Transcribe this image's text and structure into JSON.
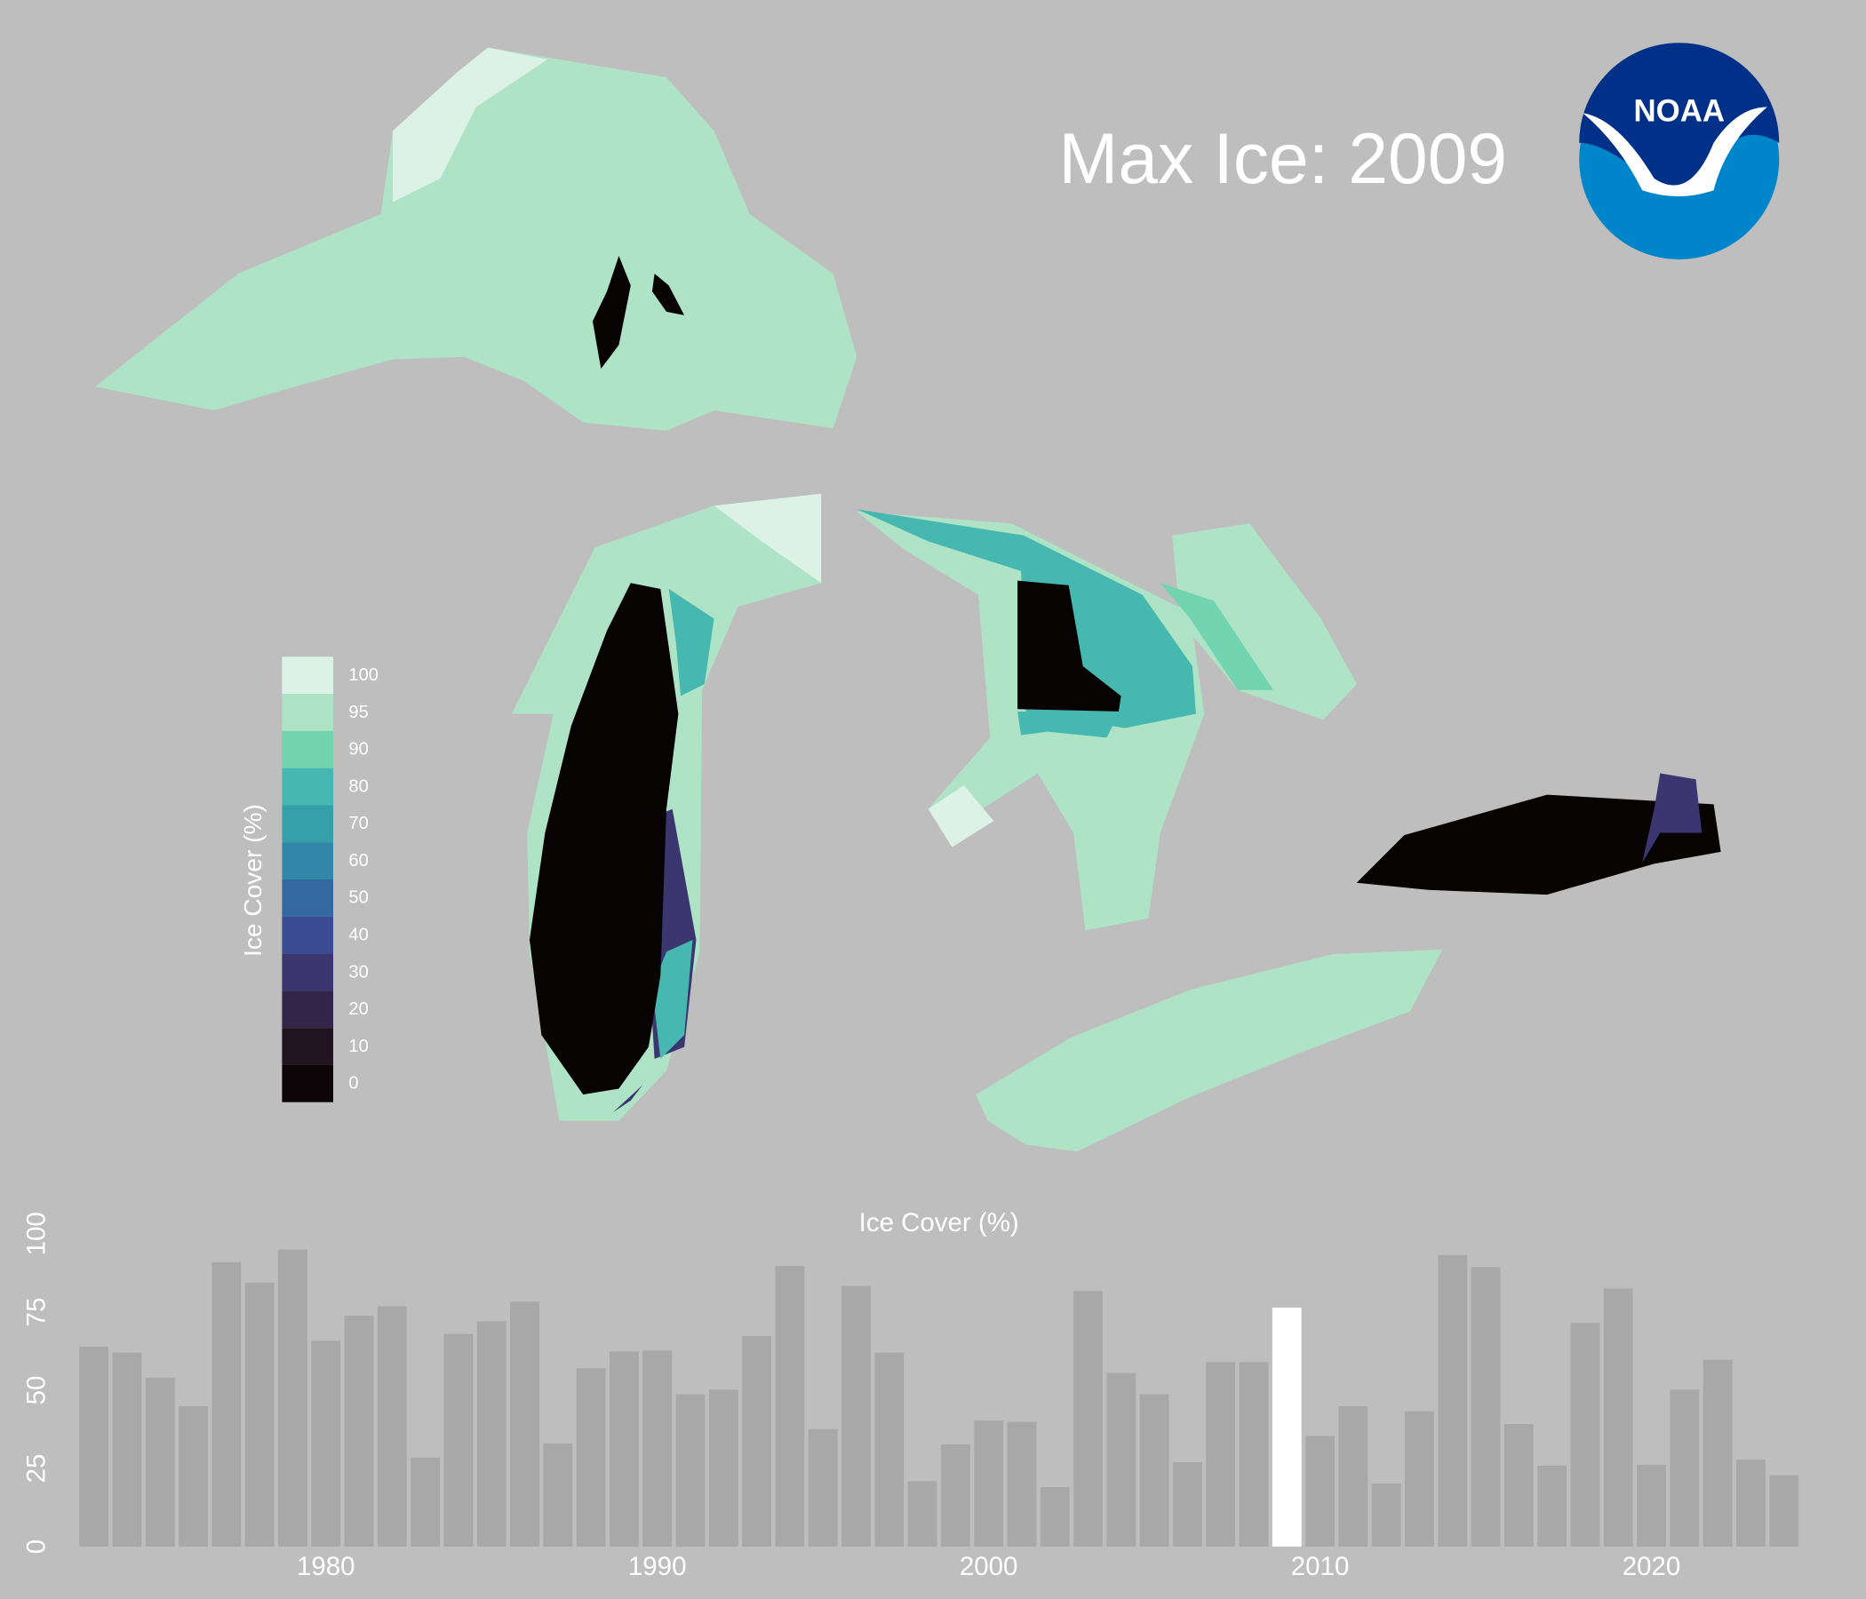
{
  "map": {
    "title": "Max Ice: 2009",
    "logo": "NOAA",
    "legend": {
      "title": "Ice Cover (%)",
      "items": [
        {
          "label": 100,
          "color": "#dcf2e6"
        },
        {
          "label": 95,
          "color": "#aee3c6"
        },
        {
          "label": 90,
          "color": "#72d4b0"
        },
        {
          "label": 80,
          "color": "#47b8b0"
        },
        {
          "label": 70,
          "color": "#35a0aa"
        },
        {
          "label": 60,
          "color": "#3286a8"
        },
        {
          "label": 50,
          "color": "#3469a0"
        },
        {
          "label": 40,
          "color": "#3a4b94"
        },
        {
          "label": 30,
          "color": "#3c3670"
        },
        {
          "label": 20,
          "color": "#322548"
        },
        {
          "label": 10,
          "color": "#22141f"
        },
        {
          "label": 0,
          "color": "#0c0507"
        }
      ]
    }
  },
  "chart_data": {
    "type": "bar",
    "title": "Ice Cover (%)",
    "color": "#a8a8a8",
    "highlight": {
      "x": 2009,
      "color": "#ffffff"
    },
    "x": [
      1973,
      1974,
      1975,
      1976,
      1977,
      1978,
      1979,
      1980,
      1981,
      1982,
      1983,
      1984,
      1985,
      1986,
      1987,
      1988,
      1989,
      1990,
      1991,
      1992,
      1993,
      1994,
      1995,
      1996,
      1997,
      1998,
      1999,
      2000,
      2001,
      2002,
      2003,
      2004,
      2005,
      2006,
      2007,
      2008,
      2009,
      2010,
      2011,
      2012,
      2013,
      2014,
      2015,
      2016,
      2017,
      2018,
      2019,
      2020,
      2021,
      2022,
      2023,
      2024
    ],
    "values": [
      63.9,
      62,
      54,
      44.9,
      90.9,
      84.4,
      95,
      65.8,
      73.8,
      76.8,
      28.5,
      68,
      72,
      78.3,
      33,
      57,
      62.4,
      62.7,
      48.7,
      50.2,
      67.3,
      89.7,
      37.6,
      83.3,
      62,
      20.9,
      32.7,
      40.3,
      39.9,
      19,
      81.7,
      55.5,
      48.7,
      27,
      59,
      59,
      76.4,
      35.4,
      44.9,
      20.2,
      43.3,
      93.2,
      89.4,
      39.2,
      25.9,
      71.5,
      82.5,
      26.2,
      50.2,
      59.7,
      27.8,
      22.8
    ],
    "xlim": [
      1972.5,
      2024.5
    ],
    "xticks": [
      1980,
      1990,
      2000,
      2010,
      2020
    ],
    "ylim": [
      0,
      100
    ],
    "yticks": [
      0,
      25,
      50,
      75,
      100
    ]
  }
}
